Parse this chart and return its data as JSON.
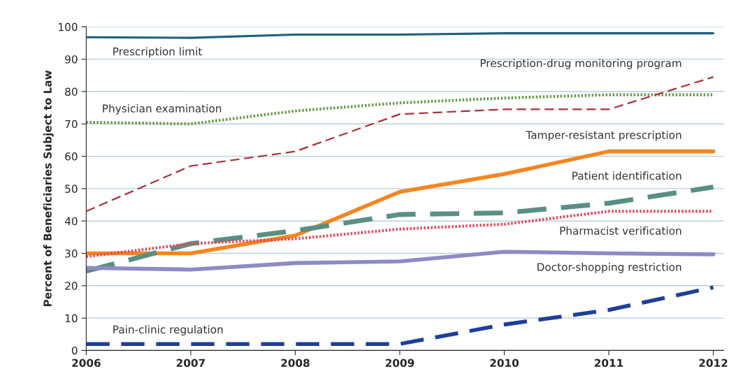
{
  "chart_data": {
    "type": "line",
    "ylabel": "Percent of Beneficiaries Subject to Law",
    "x": [
      2006,
      2007,
      2008,
      2009,
      2010,
      2011,
      2012
    ],
    "xlim": [
      2006,
      2012.1
    ],
    "xticks": [
      2006,
      2007,
      2008,
      2009,
      2010,
      2011,
      2012
    ],
    "ylim": [
      0,
      100
    ],
    "yticks": [
      0,
      10,
      20,
      30,
      40,
      50,
      60,
      70,
      80,
      90,
      100
    ],
    "grid": "y",
    "legend": false,
    "marker": "none",
    "series": [
      {
        "name": "Prescription limit",
        "color": "#1f5f7a",
        "line_style": "solid",
        "values": [
          96.8,
          96.6,
          97.6,
          97.6,
          98,
          98,
          98
        ]
      },
      {
        "name": "Physician examination",
        "color": "#6a9a4a",
        "line_style": "dotted",
        "values": [
          70.5,
          70,
          74,
          76.5,
          78,
          79,
          79
        ]
      },
      {
        "name": "Prescription-drug monitoring program",
        "color": "#a8323a",
        "line_style": "dashed",
        "values": [
          43,
          57,
          61.5,
          73,
          74.5,
          74.5,
          84.5
        ]
      },
      {
        "name": "Tamper-resistant prescription",
        "color": "#f5861f",
        "line_style": "solid",
        "values": [
          30,
          30,
          35.5,
          49,
          54.5,
          61.5,
          61.5
        ]
      },
      {
        "name": "Patient identification",
        "color": "#5a8f84",
        "line_style": "dashed",
        "values": [
          24.5,
          33,
          37,
          42,
          42.5,
          45.5,
          50.5
        ]
      },
      {
        "name": "Pharmacist verification",
        "color": "#e8455a",
        "line_style": "dotted",
        "values": [
          29,
          33,
          34.5,
          37.5,
          39,
          43,
          43
        ]
      },
      {
        "name": "Doctor-shopping restriction",
        "color": "#8e8ac4",
        "line_style": "solid",
        "values": [
          25.5,
          25,
          27,
          27.5,
          30.5,
          30,
          29.7
        ]
      },
      {
        "name": "Pain-clinic regulation",
        "color": "#1f3f99",
        "line_style": "dashed",
        "values": [
          2,
          2,
          2,
          2,
          8,
          12.5,
          19.5
        ]
      }
    ]
  }
}
